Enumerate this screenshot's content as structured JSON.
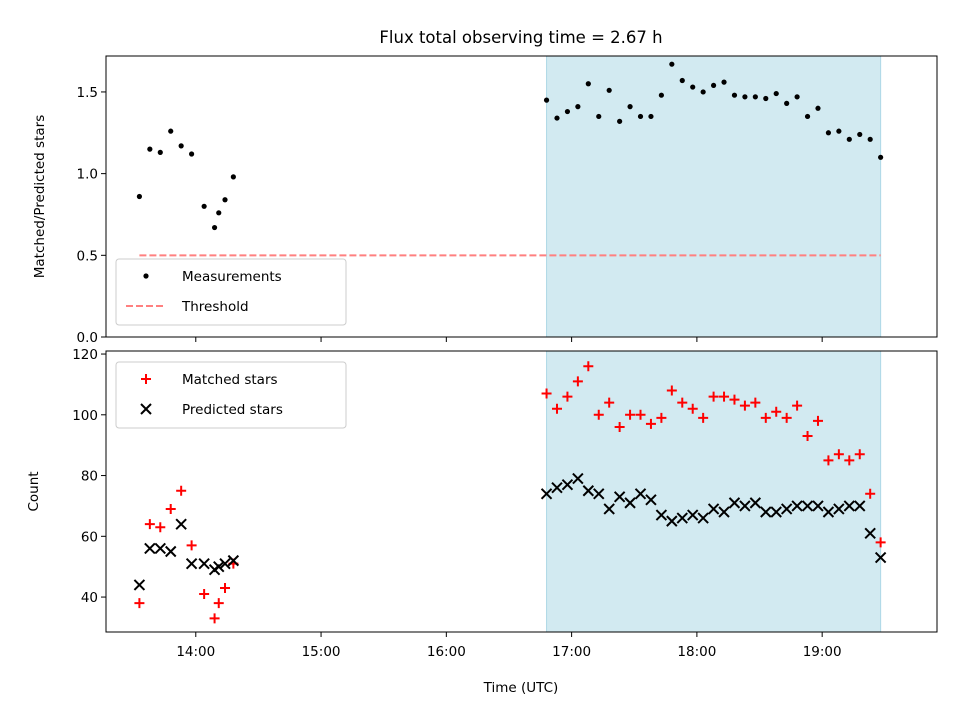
{
  "title": "Flux total observing time = 2.67 h",
  "xlabel": "Time (UTC)",
  "colors": {
    "shade": "#add8e6",
    "threshold": "#ff8080",
    "matched": "#ff0000",
    "predicted": "#000000",
    "measurement": "#000000"
  },
  "chart_data": [
    {
      "type": "scatter",
      "panel": "top",
      "ylabel": "Matched/Predicted stars",
      "ylim": [
        0,
        1.72
      ],
      "yticks": [
        0.0,
        0.5,
        1.0,
        1.5
      ],
      "ytick_labels": [
        "0.0",
        "0.5",
        "1.0",
        "1.5"
      ],
      "xlim": [
        "13:17",
        "19:55"
      ],
      "shaded_x": [
        "16:48",
        "19:28"
      ],
      "threshold": {
        "y": 0.5,
        "x": [
          "13:33",
          "19:28"
        ]
      },
      "legend_position": "lower-left",
      "legend": [
        "Measurements",
        "Threshold"
      ],
      "series": [
        {
          "name": "Measurements",
          "x": [
            "13:33",
            "13:38",
            "13:43",
            "13:48",
            "13:53",
            "13:58",
            "14:04",
            "14:09",
            "14:11",
            "14:14",
            "14:18",
            "16:48",
            "16:53",
            "16:58",
            "17:03",
            "17:08",
            "17:13",
            "17:18",
            "17:23",
            "17:28",
            "17:33",
            "17:38",
            "17:43",
            "17:48",
            "17:53",
            "17:58",
            "18:03",
            "18:08",
            "18:13",
            "18:18",
            "18:23",
            "18:28",
            "18:33",
            "18:38",
            "18:43",
            "18:48",
            "18:53",
            "18:58",
            "19:03",
            "19:08",
            "19:13",
            "19:18",
            "19:23",
            "19:28"
          ],
          "y": [
            0.86,
            1.15,
            1.13,
            1.26,
            1.17,
            1.12,
            0.8,
            0.67,
            0.76,
            0.84,
            0.98,
            1.45,
            1.34,
            1.38,
            1.41,
            1.55,
            1.35,
            1.51,
            1.32,
            1.41,
            1.35,
            1.35,
            1.48,
            1.67,
            1.57,
            1.53,
            1.5,
            1.54,
            1.56,
            1.48,
            1.47,
            1.47,
            1.46,
            1.49,
            1.43,
            1.47,
            1.35,
            1.4,
            1.25,
            1.26,
            1.21,
            1.24,
            1.21,
            1.1
          ]
        }
      ]
    },
    {
      "type": "scatter",
      "panel": "bottom",
      "ylabel": "Count",
      "ylim": [
        28.5,
        121
      ],
      "yticks": [
        40,
        60,
        80,
        100,
        120
      ],
      "ytick_labels": [
        "40",
        "60",
        "80",
        "100",
        "120"
      ],
      "xlim": [
        "13:17",
        "19:55"
      ],
      "xticks": [
        "14:00",
        "15:00",
        "16:00",
        "17:00",
        "18:00",
        "19:00"
      ],
      "xtick_labels": [
        "14:00",
        "15:00",
        "16:00",
        "17:00",
        "18:00",
        "19:00"
      ],
      "shaded_x": [
        "16:48",
        "19:28"
      ],
      "legend_position": "upper-left",
      "legend": [
        "Matched stars",
        "Predicted stars"
      ],
      "series": [
        {
          "name": "Matched stars",
          "marker": "plus",
          "x": [
            "13:33",
            "13:38",
            "13:43",
            "13:48",
            "13:53",
            "13:58",
            "14:04",
            "14:09",
            "14:11",
            "14:14",
            "14:18",
            "16:48",
            "16:53",
            "16:58",
            "17:03",
            "17:08",
            "17:13",
            "17:18",
            "17:23",
            "17:28",
            "17:33",
            "17:38",
            "17:43",
            "17:48",
            "17:53",
            "17:58",
            "18:03",
            "18:08",
            "18:13",
            "18:18",
            "18:23",
            "18:28",
            "18:33",
            "18:38",
            "18:43",
            "18:48",
            "18:53",
            "18:58",
            "19:03",
            "19:08",
            "19:13",
            "19:18",
            "19:23",
            "19:28"
          ],
          "y": [
            38,
            64,
            63,
            69,
            75,
            57,
            41,
            33,
            38,
            43,
            51,
            107,
            102,
            106,
            111,
            116,
            100,
            104,
            96,
            100,
            100,
            97,
            99,
            108,
            104,
            102,
            99,
            106,
            106,
            105,
            103,
            104,
            99,
            101,
            99,
            103,
            93,
            98,
            85,
            87,
            85,
            87,
            74,
            58
          ]
        },
        {
          "name": "Predicted stars",
          "marker": "x",
          "x": [
            "13:33",
            "13:38",
            "13:43",
            "13:48",
            "13:53",
            "13:58",
            "14:04",
            "14:09",
            "14:11",
            "14:14",
            "14:18",
            "16:48",
            "16:53",
            "16:58",
            "17:03",
            "17:08",
            "17:13",
            "17:18",
            "17:23",
            "17:28",
            "17:33",
            "17:38",
            "17:43",
            "17:48",
            "17:53",
            "17:58",
            "18:03",
            "18:08",
            "18:13",
            "18:18",
            "18:23",
            "18:28",
            "18:33",
            "18:38",
            "18:43",
            "18:48",
            "18:53",
            "18:58",
            "19:03",
            "19:08",
            "19:13",
            "19:18",
            "19:23",
            "19:28"
          ],
          "y": [
            44,
            56,
            56,
            55,
            64,
            51,
            51,
            49,
            50,
            51,
            52,
            74,
            76,
            77,
            79,
            75,
            74,
            69,
            73,
            71,
            74,
            72,
            67,
            65,
            66,
            67,
            66,
            69,
            68,
            71,
            70,
            71,
            68,
            68,
            69,
            70,
            70,
            70,
            68,
            69,
            70,
            70,
            61,
            53
          ]
        }
      ]
    }
  ]
}
